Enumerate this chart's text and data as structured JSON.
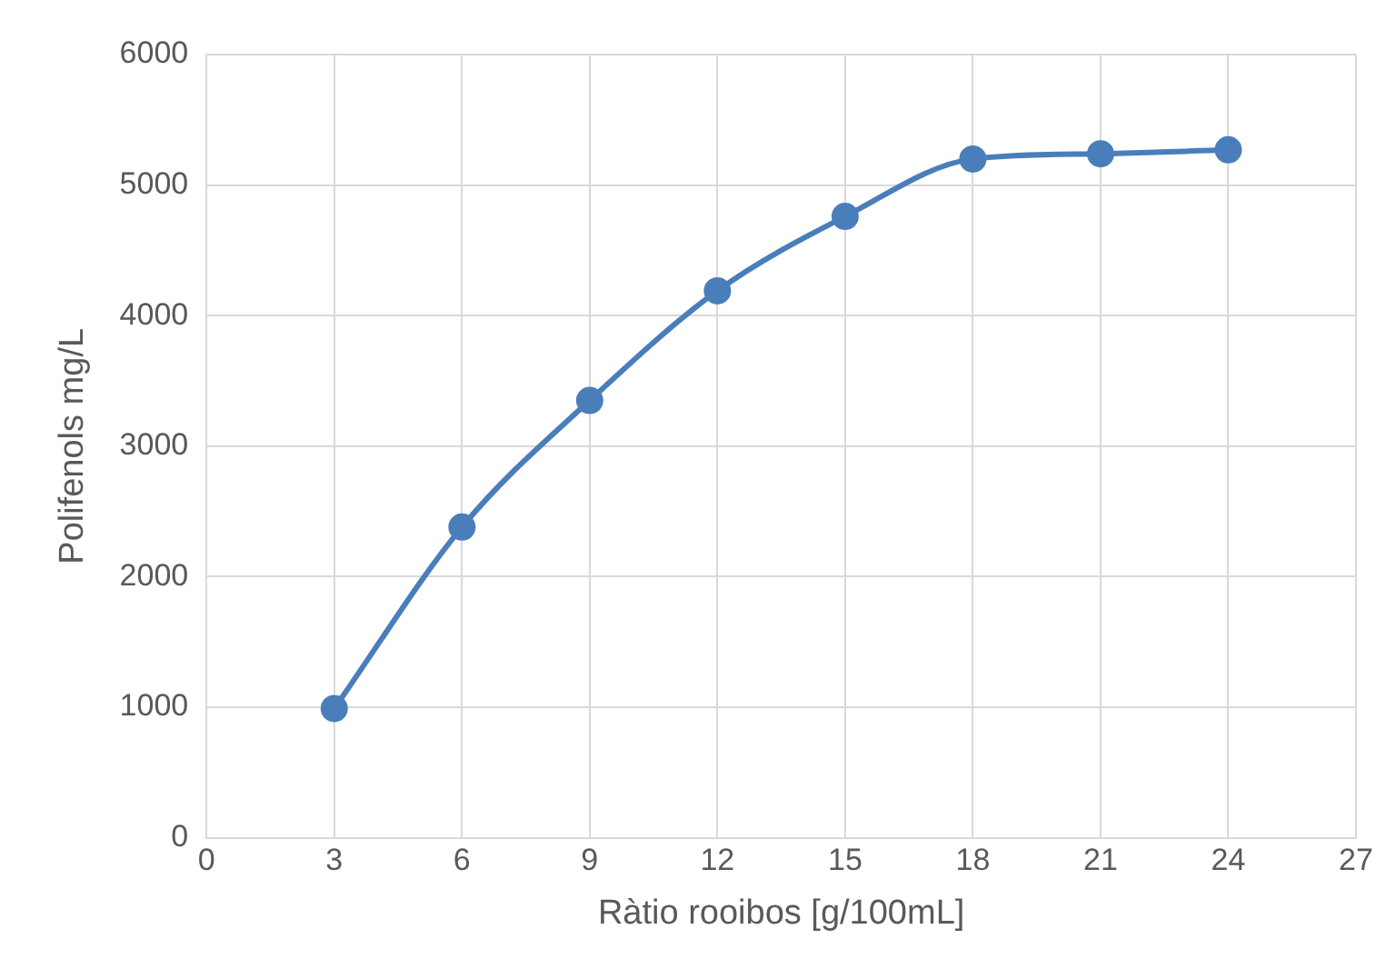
{
  "chart_data": {
    "type": "line",
    "xlabel": "Ràtio rooibos [g/100mL]",
    "ylabel": "Polifenols mg/L",
    "x": [
      3,
      6,
      9,
      12,
      15,
      18,
      21,
      24
    ],
    "series": [
      {
        "color": "#4a7ebb",
        "values": [
          990,
          2380,
          3350,
          4190,
          4760,
          5200,
          5240,
          5270
        ]
      }
    ],
    "xlim": [
      0,
      27
    ],
    "xticks": [
      0,
      3,
      6,
      9,
      12,
      15,
      18,
      21,
      24,
      27
    ],
    "ylim": [
      0,
      6000
    ],
    "yticks": [
      0,
      1000,
      2000,
      3000,
      4000,
      5000,
      6000
    ],
    "grid": true,
    "legend": false,
    "marker": "circle",
    "line_style": "solid"
  }
}
